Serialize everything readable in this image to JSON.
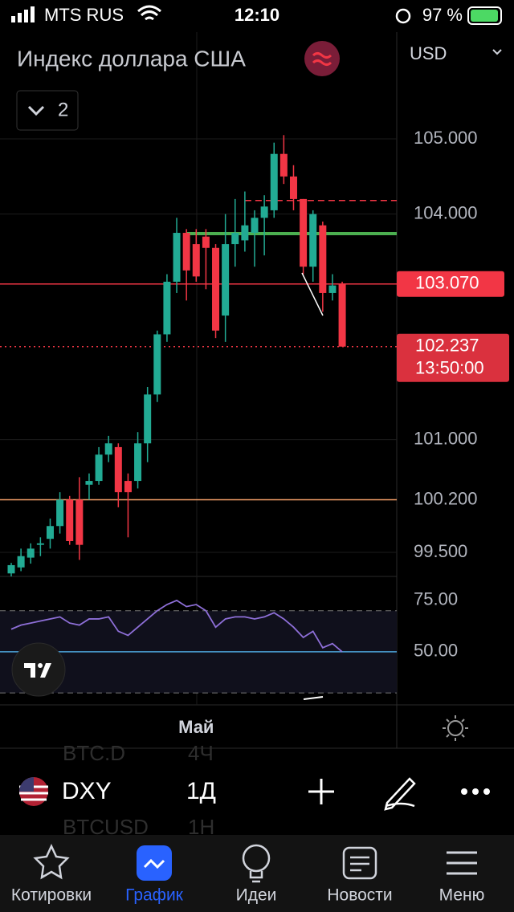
{
  "status_bar": {
    "carrier": "MTS RUS",
    "time": "12:10",
    "battery": "97 %"
  },
  "header": {
    "title": "Индекс доллара США",
    "indicator_count": 2,
    "currency": "USD"
  },
  "chart_data": {
    "type": "candlestick",
    "categories": [
      null,
      null,
      null,
      null,
      null,
      null,
      null,
      null,
      null,
      null,
      null,
      null,
      null,
      null,
      null,
      null,
      null,
      null,
      null,
      "Май",
      null,
      null,
      null,
      null,
      null,
      null,
      null,
      null,
      null,
      null,
      null,
      null,
      null,
      null,
      null
    ],
    "open": [
      99.22,
      99.3,
      99.43,
      99.6,
      99.68,
      99.85,
      100.2,
      100.2,
      100.4,
      100.45,
      100.8,
      100.9,
      100.45,
      100.45,
      100.95,
      101.6,
      102.4,
      103.1,
      103.75,
      103.6,
      103.7,
      103.55,
      102.65,
      103.6,
      103.65,
      103.75,
      103.95,
      104.05,
      104.8,
      104.5,
      104.2,
      103.3,
      103.85,
      102.95,
      103.07
    ],
    "high": [
      99.36,
      99.55,
      99.62,
      99.7,
      99.95,
      100.3,
      100.25,
      100.5,
      100.55,
      100.9,
      101.05,
      100.95,
      100.55,
      101.1,
      101.7,
      102.45,
      103.2,
      103.95,
      103.8,
      103.8,
      103.8,
      103.6,
      104.0,
      104.2,
      104.3,
      104.05,
      104.25,
      104.95,
      105.05,
      104.65,
      104.2,
      104.05,
      103.9,
      103.2,
      103.1
    ],
    "low": [
      99.18,
      99.25,
      99.35,
      99.45,
      99.55,
      99.75,
      99.6,
      99.4,
      100.2,
      100.4,
      100.7,
      100.1,
      99.7,
      100.35,
      100.7,
      101.5,
      102.3,
      102.95,
      102.85,
      103.1,
      103.0,
      102.35,
      102.3,
      103.3,
      103.5,
      103.3,
      103.45,
      103.95,
      104.4,
      104.05,
      103.2,
      103.1,
      102.7,
      102.85,
      102.237
    ],
    "close": [
      99.33,
      99.45,
      99.55,
      99.62,
      99.85,
      100.2,
      99.65,
      99.6,
      100.45,
      100.8,
      100.95,
      100.3,
      100.3,
      100.95,
      101.6,
      102.4,
      103.1,
      103.75,
      103.25,
      103.17,
      103.55,
      102.45,
      103.6,
      103.75,
      103.85,
      103.95,
      104.1,
      104.8,
      104.5,
      104.2,
      103.3,
      104.0,
      102.95,
      103.05,
      102.237
    ],
    "up_color": "#22ab94",
    "down_color": "#f23645",
    "ylim": [
      99.18,
      106.42
    ],
    "yticks": [
      {
        "value": 105,
        "label": "105.000"
      },
      {
        "value": 104,
        "label": "104.000"
      },
      {
        "value": 101,
        "label": "101.000"
      },
      {
        "value": 99.5,
        "label": "99.500"
      }
    ],
    "grid": true,
    "levels": [
      {
        "value": 103.07,
        "label": "103.070",
        "color": "#f23645",
        "style": "boxed"
      },
      {
        "value": 100.2,
        "label": "100.200",
        "color": "#f7a26b",
        "style": "solid"
      },
      {
        "value": 104.18,
        "color": "#f23645",
        "style": "dashed",
        "start": 24
      },
      {
        "value": 103.74,
        "color": "#4caf50",
        "style": "thick",
        "start": 18
      }
    ],
    "last_price": {
      "value": 102.237,
      "label": "102.237",
      "countdown": "13:50:00",
      "color": "#f23645"
    },
    "rsi": {
      "values": [
        61,
        63,
        64,
        65,
        66,
        67,
        64,
        63,
        66,
        66,
        67,
        60,
        58,
        62,
        66,
        70,
        73,
        75,
        72,
        73,
        70,
        62,
        66,
        67,
        67,
        66,
        67,
        69,
        66,
        62,
        57,
        60,
        52,
        54,
        50
      ],
      "color": "#8e6fd8",
      "ylim": [
        24.2,
        85.9
      ],
      "yticks": [
        {
          "value": 75,
          "label": "75.00"
        },
        {
          "value": 50,
          "label": "50.00"
        }
      ],
      "bands": [
        70,
        30
      ],
      "mid": 50
    }
  },
  "toolbar": {
    "symbol": "DXY",
    "interval": "1Д",
    "ghost": [
      "BTC.D",
      "4Ч",
      "BTCUSD",
      "1H"
    ]
  },
  "nav": [
    "Котировки",
    "График",
    "Идеи",
    "Новости",
    "Меню"
  ]
}
